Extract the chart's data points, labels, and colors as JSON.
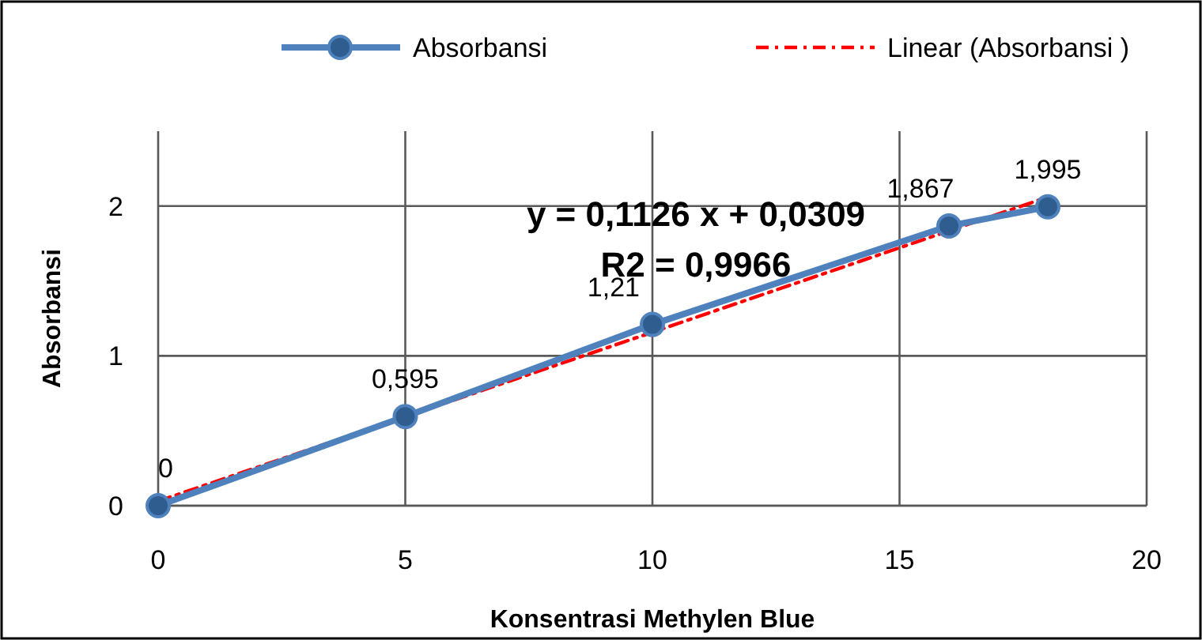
{
  "chart_data": {
    "type": "line",
    "xlabel": "Konsentrasi Methylen Blue",
    "ylabel": "Absorbansi",
    "x": [
      0,
      5,
      10,
      16,
      18
    ],
    "series": [
      {
        "name": "Absorbansi",
        "color": "#4f81bd",
        "values": [
          0,
          0.595,
          1.21,
          1.867,
          1.995
        ],
        "marker": "circle",
        "line_style": "solid",
        "value_labels": [
          "0",
          "0,595",
          "1,21",
          "1,867",
          "1,995"
        ]
      },
      {
        "name": "Linear (Absorbansi )",
        "color": "#ff0000",
        "type": "line",
        "x": [
          0,
          18
        ],
        "values": [
          0.03,
          2.06
        ],
        "marker": "none",
        "line_style": "dashed"
      }
    ],
    "annotations": [
      "y = 0,1126 x + 0,0309",
      "R2 = 0,9966"
    ],
    "xlim": [
      0,
      20
    ],
    "xticks": [
      0,
      5,
      10,
      15,
      20
    ],
    "ylim": [
      0,
      2.5
    ],
    "yticks": [
      0,
      1,
      2
    ],
    "grid": true,
    "legend": "top"
  }
}
